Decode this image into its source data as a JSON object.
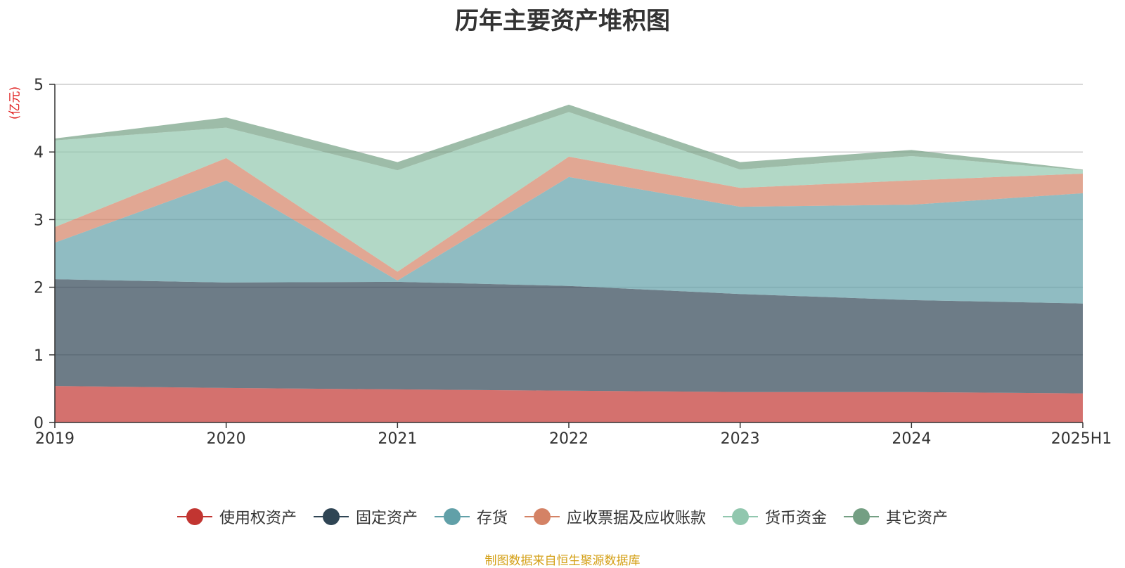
{
  "chart_data": {
    "type": "area",
    "stacked": true,
    "title": "历年主要资产堆积图",
    "unit_label": "(亿元)",
    "categories": [
      "2019",
      "2020",
      "2021",
      "2022",
      "2023",
      "2024",
      "2025H1"
    ],
    "ylim": [
      0,
      5
    ],
    "yticks": [
      "0",
      "1",
      "2",
      "3",
      "4",
      "5"
    ],
    "grid": true,
    "legend_position": "bottom",
    "series": [
      {
        "name": "使用权资产",
        "color": "#c23531",
        "values": [
          0.54,
          0.51,
          0.49,
          0.47,
          0.45,
          0.45,
          0.43
        ]
      },
      {
        "name": "固定资产",
        "color": "#2f4554",
        "values": [
          1.58,
          1.56,
          1.59,
          1.55,
          1.45,
          1.36,
          1.33
        ]
      },
      {
        "name": "存货",
        "color": "#61a0a8",
        "values": [
          0.54,
          1.51,
          0.02,
          1.61,
          1.29,
          1.41,
          1.63
        ]
      },
      {
        "name": "应收票据及应收账款",
        "color": "#d48265",
        "values": [
          0.23,
          0.33,
          0.13,
          0.3,
          0.28,
          0.36,
          0.29
        ]
      },
      {
        "name": "货币资金",
        "color": "#91c7ae",
        "values": [
          1.28,
          0.45,
          1.5,
          0.66,
          0.27,
          0.36,
          0.05
        ]
      },
      {
        "name": "其它资产",
        "color": "#749f83",
        "values": [
          0.03,
          0.15,
          0.12,
          0.11,
          0.11,
          0.09,
          0.01
        ]
      }
    ]
  },
  "source_note": "制图数据来自恒生聚源数据库"
}
